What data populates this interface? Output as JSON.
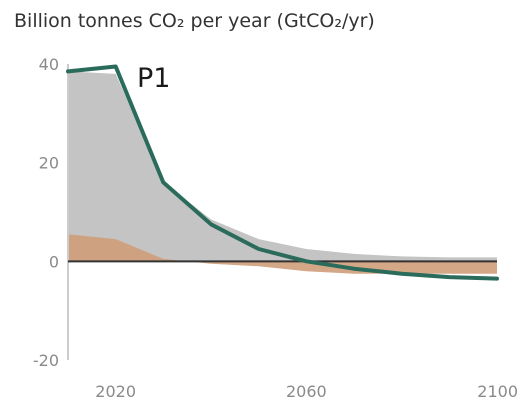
{
  "chart_data": {
    "type": "area",
    "title": "Billion tonnes CO₂ per year (GtCO₂/yr)",
    "panel_label": "P1",
    "xlim": [
      2010,
      2100
    ],
    "ylim": [
      -20,
      40
    ],
    "x_ticks": [
      2020,
      2060,
      2100
    ],
    "y_ticks": [
      40,
      20,
      0,
      -20
    ],
    "x_tick_labels": [
      "2020",
      "2060",
      "2100"
    ],
    "y_tick_labels": [
      "40",
      "20",
      "0",
      "-20"
    ],
    "grid": false,
    "colors": {
      "gray_area": "#c4c4c4",
      "orange_area": "#cf9f7a",
      "net_line": "#2b6b5b",
      "zero_line": "#333333",
      "axis": "#cccccc"
    },
    "series": [
      {
        "kind": "area",
        "color_key": "gray_area",
        "x": [
          2010,
          2020,
          2030,
          2040,
          2050,
          2060,
          2070,
          2080,
          2090,
          2100
        ],
        "values": [
          38.5,
          38,
          16,
          8.5,
          4.5,
          2.5,
          1.5,
          1,
          0.8,
          0.8
        ]
      },
      {
        "kind": "area",
        "color_key": "orange_area",
        "x": [
          2010,
          2020,
          2030,
          2040,
          2050,
          2060,
          2070,
          2080,
          2090,
          2100
        ],
        "values": [
          5.5,
          4.5,
          0.5,
          -0.5,
          -1,
          -2,
          -2.5,
          -2.5,
          -2.5,
          -2.5
        ]
      },
      {
        "kind": "line",
        "color_key": "net_line",
        "x": [
          2010,
          2020,
          2030,
          2040,
          2050,
          2060,
          2070,
          2080,
          2090,
          2100
        ],
        "values": [
          38.5,
          39.5,
          16,
          7.5,
          2.5,
          0,
          -1.5,
          -2.5,
          -3.2,
          -3.5
        ]
      }
    ]
  }
}
